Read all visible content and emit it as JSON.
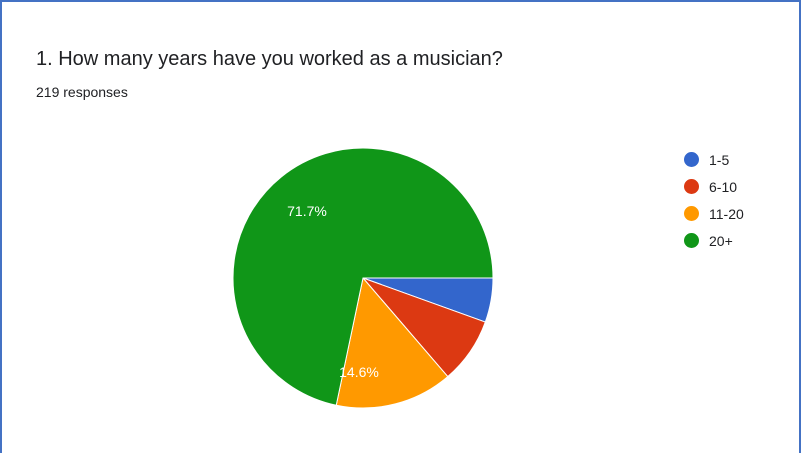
{
  "question": {
    "title": "1. How many years have you worked as a musician?",
    "responses": "219 responses"
  },
  "colors": {
    "frame_border": "#4472c4"
  },
  "chart_data": {
    "type": "pie",
    "title": "1. How many years have you worked as a musician?",
    "subtitle": "219 responses",
    "legend_position": "right",
    "start_angle_deg": 90,
    "categories": [
      "1-5",
      "6-10",
      "11-20",
      "20+"
    ],
    "values": [
      5.5,
      8.2,
      14.6,
      71.7
    ],
    "colors": [
      "#3366cc",
      "#dc3912",
      "#ff9900",
      "#109618"
    ],
    "data_labels": [
      "",
      "",
      "14.6%",
      "71.7%"
    ]
  }
}
